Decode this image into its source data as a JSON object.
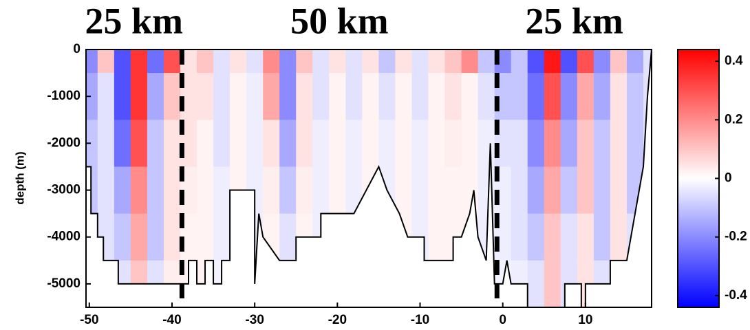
{
  "chart_data": {
    "type": "heatmap",
    "ylabel": "depth (m)",
    "xlim": [
      -50.4,
      18
    ],
    "ylim": [
      -5500,
      0
    ],
    "xticks": [
      -50,
      -40,
      -30,
      -20,
      -10,
      0,
      10
    ],
    "yticks": [
      0,
      -1000,
      -2000,
      -3000,
      -4000,
      -5000
    ],
    "clim": [
      -0.44,
      0.44
    ],
    "cticks": [
      -0.4,
      -0.2,
      0,
      0.2,
      0.4
    ],
    "colormap": [
      "#0000ff",
      "#ffffff",
      "#ff0000"
    ],
    "x": [
      -50,
      -48,
      -46,
      -44,
      -42,
      -40,
      -38,
      -36,
      -34,
      -32,
      -30,
      -28,
      -26,
      -24,
      -22,
      -20,
      -18,
      -16,
      -14,
      -12,
      -10,
      -8,
      -6,
      -4,
      -2,
      0,
      2,
      4,
      6,
      8,
      10,
      12,
      14,
      16,
      18
    ],
    "y": [
      0,
      -1000,
      -2000,
      -3000,
      -4000,
      -5000
    ],
    "z": [
      [
        -0.2,
        0.1,
        -0.3,
        0.35,
        -0.25,
        0.3,
        0.05,
        0.1,
        -0.05,
        0.05,
        -0.05,
        0.2,
        -0.2,
        0.1,
        -0.05,
        0.05,
        -0.05,
        0.05,
        -0.1,
        0.05,
        -0.05,
        0.05,
        0.1,
        0.2,
        -0.1,
        -0.2,
        -0.1,
        -0.3,
        0.4,
        -0.3,
        0.3,
        -0.2,
        0.1,
        -0.15,
        -0.05
      ],
      [
        -0.15,
        -0.05,
        -0.3,
        0.35,
        -0.15,
        0.1,
        0.05,
        0.05,
        -0.05,
        0.02,
        -0.03,
        0.15,
        -0.2,
        0.05,
        -0.05,
        0.02,
        -0.05,
        0.02,
        -0.05,
        0.02,
        -0.05,
        0.02,
        0.05,
        0.02,
        -0.05,
        -0.1,
        -0.1,
        -0.25,
        0.3,
        -0.2,
        0.15,
        -0.15,
        0.05,
        -0.1,
        -0.05
      ],
      [
        -0.1,
        -0.05,
        -0.25,
        0.3,
        -0.1,
        0.05,
        0.05,
        0.02,
        -0.05,
        0.02,
        -0.03,
        0.05,
        -0.15,
        0.05,
        -0.03,
        0.02,
        -0.03,
        0.02,
        -0.03,
        0.02,
        -0.03,
        0.02,
        0.03,
        0.02,
        -0.03,
        -0.05,
        -0.05,
        -0.2,
        0.2,
        -0.15,
        0.1,
        -0.1,
        0.05,
        -0.1,
        -0.05
      ],
      [
        -0.1,
        -0.05,
        -0.15,
        0.2,
        -0.1,
        0.05,
        0.03,
        0.02,
        -0.03,
        0.02,
        -0.03,
        0.03,
        -0.1,
        0.03,
        -0.03,
        0.02,
        -0.03,
        0.02,
        -0.03,
        0.02,
        -0.03,
        0.02,
        0.02,
        0.02,
        -0.03,
        -0.03,
        -0.05,
        -0.15,
        0.15,
        -0.1,
        0.1,
        -0.1,
        0.05,
        -0.1,
        -0.05
      ],
      [
        -0.1,
        -0.05,
        -0.1,
        0.15,
        -0.1,
        0.05,
        0.02,
        0.02,
        -0.03,
        0.02,
        -0.03,
        0.02,
        -0.05,
        0.02,
        -0.03,
        0.02,
        -0.03,
        0.02,
        -0.03,
        0.02,
        -0.03,
        0.02,
        0.02,
        0.02,
        -0.03,
        -0.03,
        -0.05,
        -0.1,
        0.1,
        -0.05,
        0.05,
        -0.1,
        0.05,
        -0.05,
        -0.05
      ],
      [
        -0.05,
        -0.05,
        -0.05,
        0.1,
        -0.05,
        0.03,
        0.02,
        0.02,
        -0.02,
        0.02,
        -0.02,
        0.02,
        -0.03,
        0.02,
        -0.02,
        0.02,
        -0.02,
        0.02,
        -0.02,
        0.02,
        -0.02,
        0.02,
        0.02,
        0.02,
        -0.02,
        -0.02,
        -0.03,
        -0.05,
        0.1,
        -0.05,
        0.05,
        -0.05,
        0.02,
        -0.05,
        -0.05
      ]
    ],
    "bathymetry": {
      "color": "#000000",
      "x": [
        -50.4,
        -49.8,
        -49.8,
        -49,
        -49,
        -48.3,
        -48.3,
        -46.5,
        -46.5,
        -38,
        -38,
        -37,
        -37,
        -36,
        -36,
        -35,
        -35,
        -34,
        -34,
        -33,
        -33,
        -30,
        -30,
        -29.5,
        -29,
        -27,
        -25,
        -25,
        -22,
        -22,
        -18,
        -15,
        -14,
        -12.5,
        -11.5,
        -9.5,
        -9.5,
        -6,
        -6,
        -5,
        -4,
        -3.5,
        -3,
        -2,
        -1.5,
        -1,
        0,
        0.5,
        1,
        3,
        3,
        7.5,
        7.5,
        9.5,
        9.5,
        10,
        10,
        13,
        13,
        15,
        15.5,
        16,
        17,
        17.5,
        18
      ],
      "values": [
        -2500,
        -2500,
        -3500,
        -3500,
        -4000,
        -4000,
        -4500,
        -4500,
        -5000,
        -5000,
        -4500,
        -4500,
        -5000,
        -5000,
        -4500,
        -4500,
        -5000,
        -5000,
        -4500,
        -4500,
        -3000,
        -3000,
        -5000,
        -3500,
        -4000,
        -4500,
        -4500,
        -4000,
        -4000,
        -3500,
        -3500,
        -2500,
        -3000,
        -3500,
        -4000,
        -4000,
        -4500,
        -4500,
        -4000,
        -4000,
        -3500,
        -3000,
        -4000,
        -4500,
        -2000,
        -5000,
        -5000,
        -4500,
        -5000,
        -5000,
        -5500,
        -5500,
        -5000,
        -5000,
        -5500,
        -5500,
        -5000,
        -5000,
        -4500,
        -4500,
        -4000,
        -3500,
        -2500,
        -1000,
        0
      ]
    },
    "boundaries": [
      -38.8,
      -0.7
    ],
    "annotations": [
      "25 km",
      "50 km",
      "25 km"
    ]
  }
}
